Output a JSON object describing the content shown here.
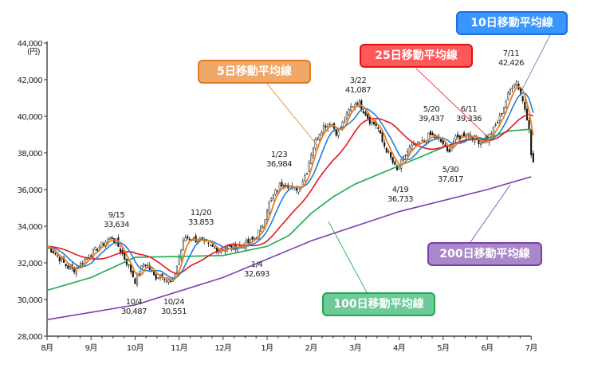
{
  "chart_data": {
    "type": "candlestick",
    "unit_label": "(円)",
    "ylim": [
      28000,
      44000
    ],
    "yticks": [
      28000,
      30000,
      32000,
      34000,
      36000,
      38000,
      40000,
      42000,
      44000
    ],
    "ytick_labels": [
      "28,000",
      "30,000",
      "32,000",
      "34,000",
      "36,000",
      "38,000",
      "40,000",
      "42,000",
      "44,000"
    ],
    "xtick_labels": [
      "8月",
      "9月",
      "10月",
      "11月",
      "12月",
      "1月",
      "2月",
      "3月",
      "4月",
      "5月",
      "6月",
      "7月"
    ],
    "close_path": [
      [
        0,
        32900
      ],
      [
        0.15,
        32600
      ],
      [
        0.3,
        32200
      ],
      [
        0.45,
        31800
      ],
      [
        0.6,
        31600
      ],
      [
        0.75,
        31900
      ],
      [
        0.9,
        32300
      ],
      [
        1.05,
        32600
      ],
      [
        1.2,
        32900
      ],
      [
        1.35,
        33200
      ],
      [
        1.47,
        33400
      ],
      [
        1.6,
        33000
      ],
      [
        1.75,
        32300
      ],
      [
        1.9,
        31600
      ],
      [
        2.0,
        31000
      ],
      [
        2.1,
        31500
      ],
      [
        2.2,
        32000
      ],
      [
        2.3,
        31800
      ],
      [
        2.45,
        31200
      ],
      [
        2.6,
        31400
      ],
      [
        2.75,
        31000
      ],
      [
        2.85,
        30900
      ],
      [
        3.0,
        32300
      ],
      [
        3.13,
        33400
      ],
      [
        3.3,
        33300
      ],
      [
        3.5,
        33200
      ],
      [
        3.7,
        32900
      ],
      [
        3.9,
        32700
      ],
      [
        4.1,
        32800
      ],
      [
        4.3,
        32900
      ],
      [
        4.5,
        33000
      ],
      [
        4.7,
        33300
      ],
      [
        4.9,
        34000
      ],
      [
        5.0,
        35000
      ],
      [
        5.15,
        35700
      ],
      [
        5.3,
        36300
      ],
      [
        5.45,
        36300
      ],
      [
        5.6,
        36000
      ],
      [
        5.75,
        36200
      ],
      [
        5.9,
        37000
      ],
      [
        6.0,
        38000
      ],
      [
        6.15,
        39000
      ],
      [
        6.3,
        39500
      ],
      [
        6.45,
        39700
      ],
      [
        6.6,
        39000
      ],
      [
        6.75,
        39800
      ],
      [
        6.9,
        40500
      ],
      [
        7.05,
        40800
      ],
      [
        7.2,
        40300
      ],
      [
        7.35,
        39700
      ],
      [
        7.5,
        39500
      ],
      [
        7.6,
        38700
      ],
      [
        7.75,
        38000
      ],
      [
        7.85,
        37500
      ],
      [
        7.95,
        37000
      ],
      [
        8.1,
        37700
      ],
      [
        8.25,
        38300
      ],
      [
        8.4,
        38400
      ],
      [
        8.55,
        38600
      ],
      [
        8.7,
        39000
      ],
      [
        8.85,
        38800
      ],
      [
        9.0,
        38500
      ],
      [
        9.1,
        38000
      ],
      [
        9.25,
        38700
      ],
      [
        9.4,
        38900
      ],
      [
        9.55,
        39100
      ],
      [
        9.7,
        38800
      ],
      [
        9.85,
        38600
      ],
      [
        10.0,
        38800
      ],
      [
        10.15,
        39300
      ],
      [
        10.3,
        40000
      ],
      [
        10.45,
        41000
      ],
      [
        10.55,
        41600
      ],
      [
        10.65,
        42000
      ],
      [
        10.75,
        41300
      ],
      [
        10.85,
        40500
      ],
      [
        10.95,
        39500
      ],
      [
        11.0,
        37800
      ],
      [
        11.05,
        37500
      ]
    ],
    "ma100": [
      [
        0,
        30500
      ],
      [
        1,
        31200
      ],
      [
        2,
        32300
      ],
      [
        3,
        32350
      ],
      [
        4,
        32400
      ],
      [
        5,
        32900
      ],
      [
        5.5,
        33500
      ],
      [
        6,
        34700
      ],
      [
        6.5,
        35600
      ],
      [
        7,
        36300
      ],
      [
        7.5,
        36800
      ],
      [
        8,
        37300
      ],
      [
        8.5,
        37800
      ],
      [
        9,
        38300
      ],
      [
        9.5,
        38700
      ],
      [
        10,
        38800
      ],
      [
        10.5,
        39200
      ],
      [
        11,
        39300
      ]
    ],
    "ma200": [
      [
        0,
        28900
      ],
      [
        2,
        29700
      ],
      [
        4,
        31200
      ],
      [
        6,
        33200
      ],
      [
        8,
        34800
      ],
      [
        10,
        36000
      ],
      [
        11,
        36700
      ]
    ],
    "series_colors": {
      "ma5": "#e87d1e",
      "ma10": "#1e7fd8",
      "ma25": "#e8141e",
      "ma100": "#1aaa50",
      "ma200": "#7a3fb0"
    },
    "annotations": [
      {
        "date": "9/15",
        "value": "33,634"
      },
      {
        "date": "10/4",
        "value": "30,487"
      },
      {
        "date": "10/24",
        "value": "30,551"
      },
      {
        "date": "11/20",
        "value": "33,853"
      },
      {
        "date": "1/4",
        "value": "32,693"
      },
      {
        "date": "1/23",
        "value": "36,984"
      },
      {
        "date": "3/22",
        "value": "41,087"
      },
      {
        "date": "4/19",
        "value": "36,733"
      },
      {
        "date": "5/20",
        "value": "39,437"
      },
      {
        "date": "5/30",
        "value": "37,617"
      },
      {
        "date": "6/11",
        "value": "39,336"
      },
      {
        "date": "7/11",
        "value": "42,426"
      }
    ],
    "legend_boxes": {
      "ma5": "5日移動平均線",
      "ma10": "10日移動平均線",
      "ma25": "25日移動平均線",
      "ma100": "100日移動平均線",
      "ma200": "200日移動平均線"
    }
  }
}
